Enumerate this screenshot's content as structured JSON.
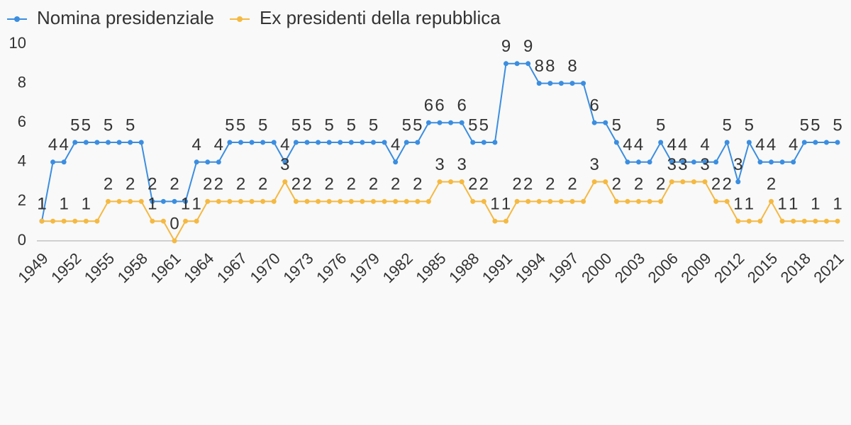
{
  "chart_data": {
    "type": "line",
    "x": [
      1949,
      1950,
      1951,
      1952,
      1953,
      1954,
      1955,
      1956,
      1957,
      1958,
      1959,
      1960,
      1961,
      1962,
      1963,
      1964,
      1965,
      1966,
      1967,
      1968,
      1969,
      1970,
      1971,
      1972,
      1973,
      1974,
      1975,
      1976,
      1977,
      1978,
      1979,
      1980,
      1981,
      1982,
      1983,
      1984,
      1985,
      1986,
      1987,
      1988,
      1989,
      1990,
      1991,
      1992,
      1993,
      1994,
      1995,
      1996,
      1997,
      1998,
      1999,
      2000,
      2001,
      2002,
      2003,
      2004,
      2005,
      2006,
      2007,
      2008,
      2009,
      2010,
      2011,
      2012,
      2013,
      2014,
      2015,
      2016,
      2017,
      2018,
      2019,
      2020,
      2021
    ],
    "series": [
      {
        "name": "Nomina presidenziale",
        "color": "#3b8ee0",
        "values": [
          1,
          4,
          4,
          5,
          5,
          5,
          5,
          5,
          5,
          5,
          2,
          2,
          2,
          2,
          4,
          4,
          4,
          5,
          5,
          5,
          5,
          5,
          4,
          5,
          5,
          5,
          5,
          5,
          5,
          5,
          5,
          5,
          4,
          5,
          5,
          6,
          6,
          6,
          6,
          5,
          5,
          5,
          9,
          9,
          9,
          8,
          8,
          8,
          8,
          8,
          6,
          6,
          5,
          4,
          4,
          4,
          5,
          4,
          4,
          4,
          4,
          4,
          5,
          3,
          5,
          4,
          4,
          4,
          4,
          5,
          5,
          5,
          5
        ]
      },
      {
        "name": "Ex presidenti della repubblica",
        "color": "#f5b941",
        "values": [
          1,
          1,
          1,
          1,
          1,
          1,
          2,
          2,
          2,
          2,
          1,
          1,
          0,
          1,
          1,
          2,
          2,
          2,
          2,
          2,
          2,
          2,
          3,
          2,
          2,
          2,
          2,
          2,
          2,
          2,
          2,
          2,
          2,
          2,
          2,
          2,
          3,
          3,
          3,
          2,
          2,
          1,
          1,
          2,
          2,
          2,
          2,
          2,
          2,
          2,
          3,
          3,
          2,
          2,
          2,
          2,
          2,
          3,
          3,
          3,
          3,
          2,
          2,
          1,
          1,
          1,
          2,
          1,
          1,
          1,
          1,
          1,
          1
        ]
      }
    ],
    "xlim": [
      1949,
      2021
    ],
    "xticks": [
      1949,
      1952,
      1955,
      1958,
      1961,
      1964,
      1967,
      1970,
      1973,
      1976,
      1979,
      1982,
      1985,
      1988,
      1991,
      1994,
      1997,
      2000,
      2003,
      2006,
      2009,
      2012,
      2015,
      2018,
      2021
    ],
    "ylim": [
      0,
      10
    ],
    "yticks": [
      0,
      2,
      4,
      6,
      8,
      10
    ],
    "legend": "top-left"
  }
}
